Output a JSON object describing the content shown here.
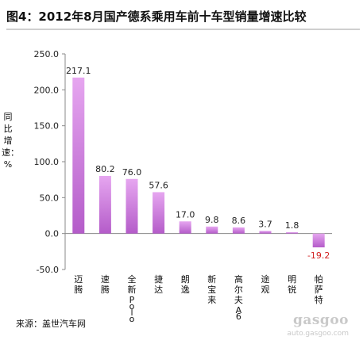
{
  "title": "图4：2012年8月国产德系乘用车前十车型销量增速比较",
  "source": "来源：盖世汽车网",
  "watermark": {
    "logo": "gasgoo",
    "url": "auto.gasgoo.com"
  },
  "colors": {
    "bar_top": "#e6a6f0",
    "bar_bottom": "#b45cc9",
    "positive_label": "#222222",
    "negative_label": "#d21f1f"
  },
  "chart_data": {
    "type": "bar",
    "title": "图4：2012年8月国产德系乘用车前十车型销量增速比较",
    "ylabel": "同比增速：%",
    "xlabel": "",
    "ylim": [
      -50,
      250
    ],
    "yticks": [
      "250.0",
      "200.0",
      "150.0",
      "100.0",
      "50.0",
      "0.0",
      "-50.0"
    ],
    "ytick_values": [
      250,
      200,
      150,
      100,
      50,
      0,
      -50
    ],
    "grid": false,
    "legend": "none",
    "categories": [
      "迈腾",
      "速腾",
      "全新Polo",
      "捷达",
      "朗逸",
      "新宝来",
      "高尔夫A6",
      "途观",
      "明锐",
      "帕萨特"
    ],
    "values": [
      217.1,
      80.2,
      76.0,
      57.6,
      17.0,
      9.8,
      8.6,
      3.7,
      1.8,
      -19.2
    ],
    "value_labels": [
      "217.1",
      "80.2",
      "76.0",
      "57.6",
      "17.0",
      "9.8",
      "8.6",
      "3.7",
      "1.8",
      "-19.2"
    ]
  }
}
